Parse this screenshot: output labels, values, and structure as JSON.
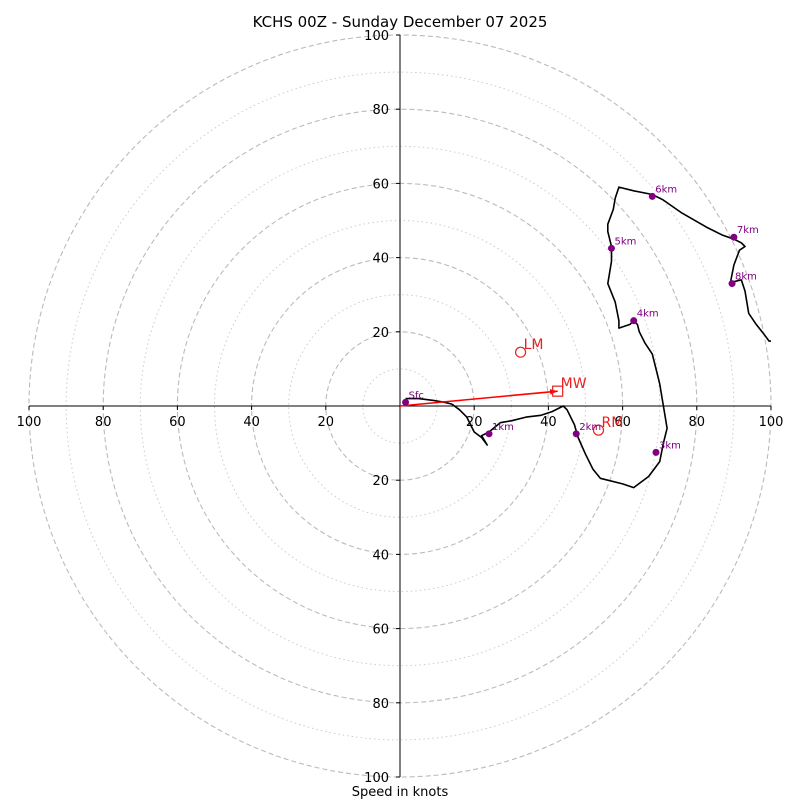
{
  "chart_data": {
    "type": "hodograph",
    "title": "KCHS 00Z - Sunday December 07 2025",
    "xlabel": "Speed in knots",
    "ylabel": "",
    "xlim": [
      -100,
      100
    ],
    "ylim": [
      -100,
      100
    ],
    "ring_major": [
      20,
      40,
      60,
      80,
      100
    ],
    "ring_minor": [
      10,
      30,
      50,
      70,
      90
    ],
    "ticks": {
      "right": [
        "20",
        "40",
        "60",
        "80",
        "100"
      ],
      "left": [
        "100",
        "80",
        "60",
        "40",
        "20"
      ],
      "up": [
        "20",
        "40",
        "60",
        "80",
        "100"
      ],
      "down": [
        "20",
        "40",
        "60",
        "80",
        "100"
      ]
    },
    "hodograph_trace": [
      [
        1.5,
        2.0
      ],
      [
        5,
        2.0
      ],
      [
        9,
        1.5
      ],
      [
        12,
        1.0
      ],
      [
        14,
        0.5
      ],
      [
        16,
        -1
      ],
      [
        18,
        -3
      ],
      [
        19,
        -5
      ],
      [
        20,
        -7
      ],
      [
        22,
        -8.5
      ],
      [
        23.5,
        -10.5
      ],
      [
        22,
        -8
      ],
      [
        24,
        -7
      ],
      [
        27,
        -4.5
      ],
      [
        30,
        -4
      ],
      [
        34,
        -3
      ],
      [
        38,
        -2.5
      ],
      [
        41,
        -1.5
      ],
      [
        44,
        0
      ],
      [
        45,
        -1
      ],
      [
        47,
        -5
      ],
      [
        48,
        -8.5
      ],
      [
        50,
        -13
      ],
      [
        52,
        -17
      ],
      [
        54,
        -19.5
      ],
      [
        60,
        -21
      ],
      [
        63,
        -22
      ],
      [
        67,
        -19
      ],
      [
        70,
        -15
      ],
      [
        71,
        -10
      ],
      [
        72,
        -6
      ],
      [
        71,
        0
      ],
      [
        70,
        6
      ],
      [
        68,
        14
      ],
      [
        66,
        17
      ],
      [
        64.5,
        20
      ],
      [
        64,
        22
      ],
      [
        63,
        23
      ],
      [
        62,
        22
      ],
      [
        59,
        21
      ],
      [
        59,
        23
      ],
      [
        58,
        28
      ],
      [
        56,
        33
      ],
      [
        57,
        39
      ],
      [
        57,
        43
      ],
      [
        56,
        47
      ],
      [
        56,
        49
      ],
      [
        57.5,
        53
      ],
      [
        58,
        56
      ],
      [
        59,
        59
      ],
      [
        63,
        58
      ],
      [
        68,
        57
      ],
      [
        70,
        56
      ],
      [
        71,
        55.5
      ],
      [
        76,
        52
      ],
      [
        83,
        48
      ],
      [
        87,
        46
      ],
      [
        90,
        45
      ],
      [
        92,
        44
      ],
      [
        93,
        43
      ],
      [
        91.5,
        42
      ],
      [
        90,
        38
      ],
      [
        89,
        33
      ],
      [
        90,
        33.5
      ],
      [
        92,
        34
      ],
      [
        93,
        31
      ],
      [
        94,
        25
      ],
      [
        96,
        22
      ],
      [
        98,
        19.5
      ],
      [
        99.5,
        17.5
      ],
      [
        100,
        17.5
      ]
    ],
    "height_markers": [
      {
        "label": "Sfc",
        "u": 1.5,
        "v": 1.0
      },
      {
        "label": "1km",
        "u": 24,
        "v": -7.5
      },
      {
        "label": "2km",
        "u": 47.5,
        "v": -7.5
      },
      {
        "label": "3km",
        "u": 69,
        "v": -12.5
      },
      {
        "label": "4km",
        "u": 63,
        "v": 23
      },
      {
        "label": "5km",
        "u": 57,
        "v": 42.5
      },
      {
        "label": "6km",
        "u": 68,
        "v": 56.5
      },
      {
        "label": "7km",
        "u": 90,
        "v": 45.5
      },
      {
        "label": "8km",
        "u": 89.5,
        "v": 33
      }
    ],
    "storm_motions": [
      {
        "label": "LM",
        "u": 32.5,
        "v": 14.5,
        "marker": "circle"
      },
      {
        "label": "MW",
        "u": 42.5,
        "v": 4.0,
        "marker": "square"
      },
      {
        "label": "RM",
        "u": 53.5,
        "v": -6.5,
        "marker": "circle"
      }
    ],
    "mean_wind_vector": {
      "from": [
        0,
        0
      ],
      "to": [
        42.5,
        4.0
      ]
    },
    "colors": {
      "trace": "#000000",
      "markers": "#800080",
      "storm": "#e8201e",
      "mw_arrow": "#ff0000",
      "ring_major": "#bbbbbb",
      "ring_minor": "#cccccc",
      "axes": "#000000"
    }
  }
}
